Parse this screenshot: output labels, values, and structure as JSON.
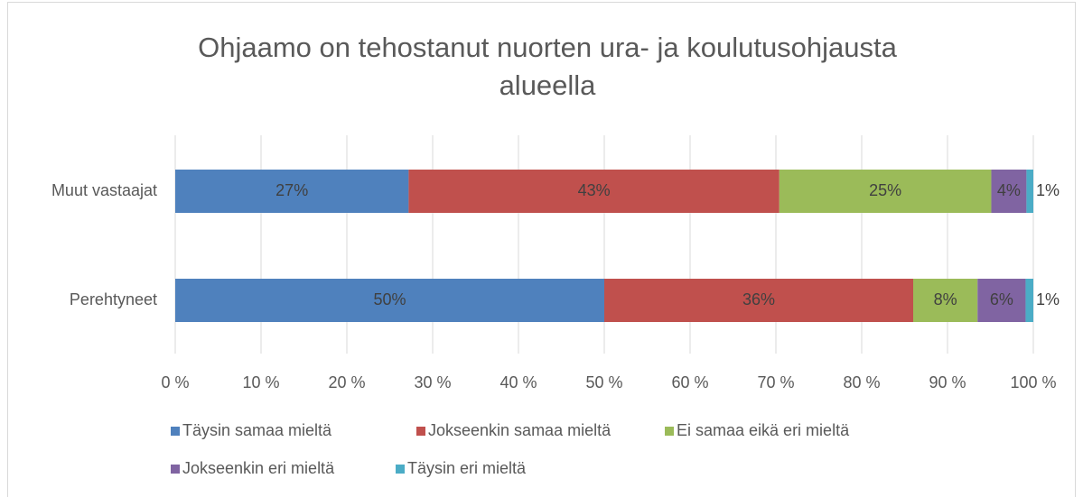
{
  "chart_data": {
    "type": "stacked_barh",
    "title": "Ohjaamo on tehostanut nuorten ura- ja koulutusohjausta alueella",
    "categories": [
      "Muut vastaajat",
      "Perehtyneet"
    ],
    "series": [
      {
        "name": "Täysin samaa mieltä",
        "color": "#4f81bd",
        "values": [
          27.2,
          50
        ],
        "value_labels": [
          "27%",
          "50%"
        ]
      },
      {
        "name": "Jokseenkin samaa mieltä",
        "color": "#c0504d",
        "values": [
          43.2,
          36
        ],
        "value_labels": [
          "43%",
          "36%"
        ]
      },
      {
        "name": "Ei samaa eikä eri mieltä",
        "color": "#9bbb59",
        "values": [
          24.7,
          7.5
        ],
        "value_labels": [
          "25%",
          "8%"
        ]
      },
      {
        "name": "Jokseenkin eri mieltä",
        "color": "#8064a2",
        "values": [
          4.1,
          5.6
        ],
        "value_labels": [
          "4%",
          "6%"
        ]
      },
      {
        "name": "Täysin eri mieltä",
        "color": "#4bacc6",
        "values": [
          0.8,
          0.9
        ],
        "value_labels": [
          "1%",
          "1%"
        ]
      }
    ],
    "xlim": [
      0,
      100
    ],
    "xticks": [
      {
        "value": 0,
        "label": "0 %"
      },
      {
        "value": 10,
        "label": "10 %"
      },
      {
        "value": 20,
        "label": "20 %"
      },
      {
        "value": 30,
        "label": "30 %"
      },
      {
        "value": 40,
        "label": "40 %"
      },
      {
        "value": 50,
        "label": "50 %"
      },
      {
        "value": 60,
        "label": "60 %"
      },
      {
        "value": 70,
        "label": "70 %"
      },
      {
        "value": 80,
        "label": "80 %"
      },
      {
        "value": 90,
        "label": "90 %"
      },
      {
        "value": 100,
        "label": "100 %"
      }
    ],
    "grid": true,
    "legend": "bottom"
  }
}
